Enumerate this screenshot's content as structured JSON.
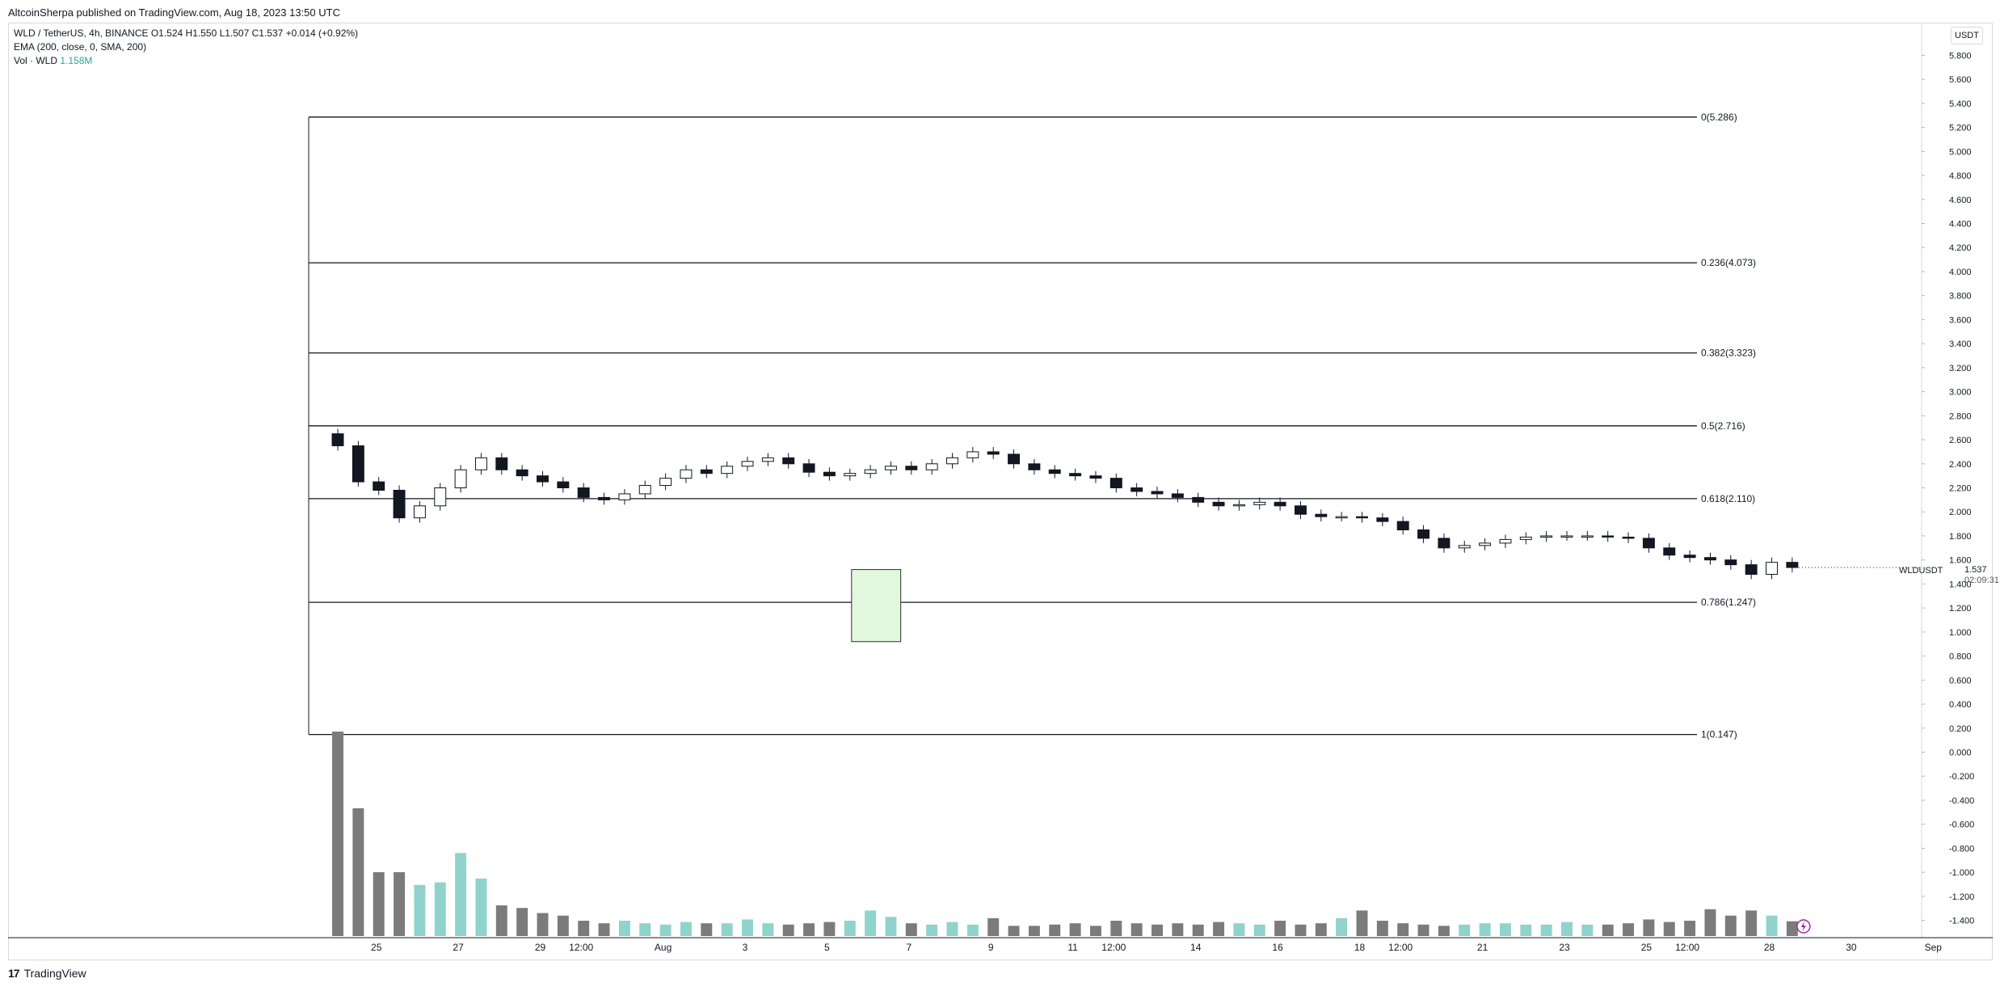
{
  "publisher_line": "AltcoinSherpa published on TradingView.com, Aug 18, 2023 13:50 UTC",
  "legend": {
    "symbol_line": "WLD / TetherUS, 4h, BINANCE",
    "ohlc": "O1.524 H1.550 L1.507 C1.537 +0.014 (+0.92%)",
    "ema_line": "EMA (200, close, 0, SMA, 200)",
    "vol_label": "Vol · WLD",
    "vol_value": "1.158M"
  },
  "currency": "USDT",
  "symbol_tag": "WLDUSDT",
  "last_price": "1.537",
  "countdown": "02:09:31",
  "footer": {
    "logo": "17",
    "brand": "TradingView"
  },
  "colors": {
    "up_volume": "#8fd3cb",
    "down_volume": "#7b7b7b",
    "fib_line": "#131722",
    "zone_fill": "#e3f7de",
    "zone_border": "#2e2e2e",
    "flash_icon": "#9c27b0"
  },
  "icons": {
    "flash": "lightning-bolt-icon",
    "logo": "tradingview-logo-icon"
  },
  "chart_data": {
    "type": "candlestick",
    "title": "",
    "price_axis": {
      "ylim": [
        -1.45,
        5.85
      ],
      "ticks": [
        "5.800",
        "5.600",
        "5.400",
        "5.200",
        "5.000",
        "4.800",
        "4.600",
        "4.400",
        "4.200",
        "4.000",
        "3.800",
        "3.600",
        "3.400",
        "3.200",
        "3.000",
        "2.800",
        "2.600",
        "2.400",
        "2.200",
        "2.000",
        "1.800",
        "1.600",
        "1.400",
        "1.200",
        "1.000",
        "0.800",
        "0.600",
        "0.400",
        "0.200",
        "0.000",
        "-0.200",
        "-0.400",
        "-0.600",
        "-0.800",
        "-1.000",
        "-1.200",
        "-1.400"
      ]
    },
    "time_axis": {
      "ticks": [
        "25",
        "27",
        "29",
        "12:00",
        "Aug",
        "3",
        "5",
        "7",
        "9",
        "11",
        "12:00",
        "14",
        "16",
        "18",
        "12:00",
        "21",
        "23",
        "25",
        "12:00",
        "28",
        "30",
        "Sep"
      ],
      "tick_days": [
        25,
        27,
        29,
        30,
        32,
        34,
        36,
        38,
        40,
        42,
        43,
        45,
        47,
        49,
        50,
        52,
        54,
        56,
        57,
        59,
        61,
        63
      ]
    },
    "fib_levels": [
      {
        "ratio": "0",
        "label": "0(5.286)",
        "price": 5.286
      },
      {
        "ratio": "0.236",
        "label": "0.236(4.073)",
        "price": 4.073
      },
      {
        "ratio": "0.382",
        "label": "0.382(3.323)",
        "price": 3.323
      },
      {
        "ratio": "0.5",
        "label": "0.5(2.716)",
        "price": 2.716
      },
      {
        "ratio": "0.618",
        "label": "0.618(2.110)",
        "price": 2.11
      },
      {
        "ratio": "0.786",
        "label": "0.786(1.247)",
        "price": 1.247
      },
      {
        "ratio": "1",
        "label": "1(0.147)",
        "price": 0.147
      }
    ],
    "zone": {
      "day_start": 36.6,
      "day_end": 37.8,
      "price_top": 1.52,
      "price_bottom": 0.92
    },
    "price_series": {
      "name": "WLD / TetherUS",
      "first_day": 24.0,
      "day_step": 0.5,
      "close": [
        2.55,
        2.25,
        2.18,
        1.95,
        2.05,
        2.2,
        2.35,
        2.45,
        2.35,
        2.3,
        2.25,
        2.2,
        2.12,
        2.1,
        2.15,
        2.22,
        2.28,
        2.35,
        2.32,
        2.38,
        2.42,
        2.45,
        2.4,
        2.33,
        2.3,
        2.32,
        2.35,
        2.38,
        2.35,
        2.4,
        2.45,
        2.5,
        2.48,
        2.4,
        2.35,
        2.32,
        2.3,
        2.28,
        2.2,
        2.17,
        2.15,
        2.12,
        2.08,
        2.05,
        2.06,
        2.08,
        2.05,
        1.98,
        1.96,
        1.96,
        1.95,
        1.92,
        1.85,
        1.78,
        1.7,
        1.72,
        1.74,
        1.77,
        1.79,
        1.8,
        1.8,
        1.8,
        1.79,
        1.78,
        1.7,
        1.64,
        1.62,
        1.6,
        1.56,
        1.48,
        1.58,
        1.537
      ],
      "volume_m": [
        16.0,
        10.0,
        5.0,
        5.0,
        4.0,
        4.2,
        6.5,
        4.5,
        2.4,
        2.2,
        1.8,
        1.6,
        1.2,
        1.0,
        1.2,
        1.0,
        0.9,
        1.1,
        1.0,
        1.0,
        1.3,
        1.0,
        0.9,
        1.0,
        1.1,
        1.2,
        2.0,
        1.5,
        1.0,
        0.9,
        1.1,
        0.9,
        1.4,
        0.8,
        0.8,
        0.9,
        1.0,
        0.8,
        1.2,
        1.0,
        0.9,
        1.0,
        0.9,
        1.1,
        1.0,
        0.9,
        1.2,
        0.9,
        1.0,
        1.4,
        2.0,
        1.2,
        1.0,
        0.9,
        0.8,
        0.9,
        1.0,
        1.0,
        0.9,
        0.9,
        1.1,
        0.9,
        0.9,
        1.0,
        1.3,
        1.1,
        1.2,
        2.1,
        1.6,
        2.0,
        1.6,
        1.158
      ]
    }
  }
}
